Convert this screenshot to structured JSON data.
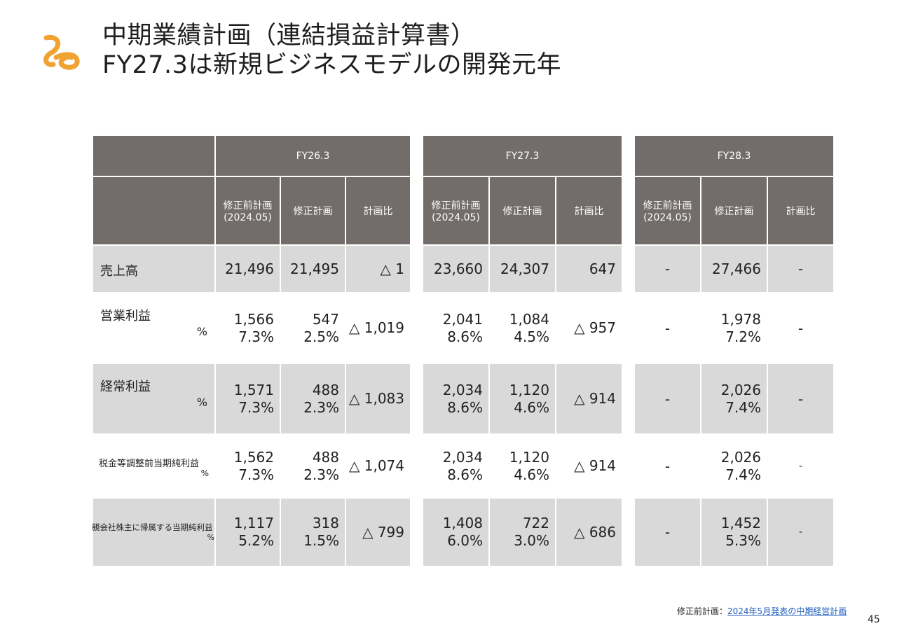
{
  "title": {
    "line1": "中期業績計画（連結損益計算書）",
    "line2": "FY27.3は新規ビジネスモデルの開発元年"
  },
  "colors": {
    "header_bg": "#726c6b",
    "stripe_bg": "#d9d9d9",
    "logo": "#f0a233"
  },
  "logo": {
    "name": "company-logo-swirl-icon"
  },
  "periods": [
    "FY26.3",
    "FY27.3",
    "FY28.3"
  ],
  "subheaders": {
    "before": "修正前計画",
    "before_date": "(2024.05)",
    "revised": "修正計画",
    "ratio": "計画比"
  },
  "rows": [
    {
      "label": "売上高",
      "pct": "",
      "fy26": {
        "before": [
          "21,496"
        ],
        "revised": [
          "21,495"
        ],
        "ratio": "△ 1"
      },
      "fy27": {
        "before": [
          "23,660"
        ],
        "revised": [
          "24,307"
        ],
        "ratio": "647"
      },
      "fy28": {
        "before": "-",
        "revised": [
          "27,466"
        ],
        "ratio": "-"
      }
    },
    {
      "label": "営業利益",
      "pct": "%",
      "fy26": {
        "before": [
          "1,566",
          "7.3%"
        ],
        "revised": [
          "547",
          "2.5%"
        ],
        "ratio": "△ 1,019"
      },
      "fy27": {
        "before": [
          "2,041",
          "8.6%"
        ],
        "revised": [
          "1,084",
          "4.5%"
        ],
        "ratio": "△ 957"
      },
      "fy28": {
        "before": "-",
        "revised": [
          "1,978",
          "7.2%"
        ],
        "ratio": "-"
      }
    },
    {
      "label": "経常利益",
      "pct": "%",
      "fy26": {
        "before": [
          "1,571",
          "7.3%"
        ],
        "revised": [
          "488",
          "2.3%"
        ],
        "ratio": "△ 1,083"
      },
      "fy27": {
        "before": [
          "2,034",
          "8.6%"
        ],
        "revised": [
          "1,120",
          "4.6%"
        ],
        "ratio": "△ 914"
      },
      "fy28": {
        "before": "-",
        "revised": [
          "2,026",
          "7.4%"
        ],
        "ratio": "-"
      }
    },
    {
      "label": "税金等調整前当期純利益",
      "pct": "%",
      "fy26": {
        "before": [
          "1,562",
          "7.3%"
        ],
        "revised": [
          "488",
          "2.3%"
        ],
        "ratio": "△ 1,074"
      },
      "fy27": {
        "before": [
          "2,034",
          "8.6%"
        ],
        "revised": [
          "1,120",
          "4.6%"
        ],
        "ratio": "△ 914"
      },
      "fy28": {
        "before": "-",
        "revised": [
          "2,026",
          "7.4%"
        ],
        "ratio": "-"
      }
    },
    {
      "label": "親会社株主に帰属する当期純利益",
      "pct": "%",
      "fy26": {
        "before": [
          "1,117",
          "5.2%"
        ],
        "revised": [
          "318",
          "1.5%"
        ],
        "ratio": "△ 799"
      },
      "fy27": {
        "before": [
          "1,408",
          "6.0%"
        ],
        "revised": [
          "722",
          "3.0%"
        ],
        "ratio": "△ 686"
      },
      "fy28": {
        "before": "-",
        "revised": [
          "1,452",
          "5.3%"
        ],
        "ratio": "-"
      }
    }
  ],
  "footnote": {
    "prefix": "修正前計画：",
    "link": "2024年5月発表の中期経営計画"
  },
  "page_number": "45"
}
